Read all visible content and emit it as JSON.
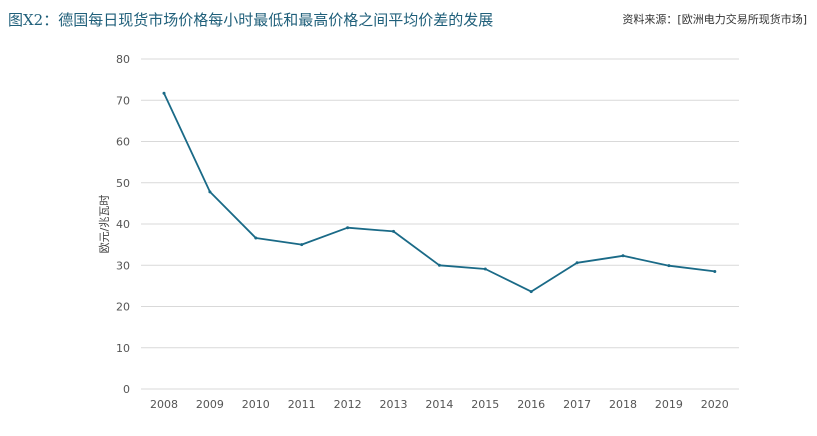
{
  "header": {
    "title": "图X2：德国每日现货市场价格每小时最低和最高价格之间平均价差的发展",
    "source": "资料来源：[欧洲电力交易所现货市场]"
  },
  "colors": {
    "line": "#1a6a87",
    "grid": "#d9d9d9",
    "title": "#1f5f7a"
  },
  "chart_data": {
    "type": "line",
    "title": "图X2：德国每日现货市场价格每小时最低和最高价格之间平均价差的发展",
    "xlabel": "",
    "ylabel": "欧元/兆瓦时",
    "categories": [
      "2008",
      "2009",
      "2010",
      "2011",
      "2012",
      "2013",
      "2014",
      "2015",
      "2016",
      "2017",
      "2018",
      "2019",
      "2020"
    ],
    "series": [
      {
        "values": [
          71.7,
          47.8,
          36.6,
          35.0,
          39.1,
          38.2,
          30.0,
          29.1,
          23.6,
          30.6,
          32.3,
          29.9,
          28.5
        ]
      }
    ],
    "ylim": [
      0,
      80
    ],
    "yticks": [
      0,
      10,
      20,
      30,
      40,
      50,
      60,
      70,
      80
    ],
    "grid": "horizontal",
    "legend": "none"
  }
}
